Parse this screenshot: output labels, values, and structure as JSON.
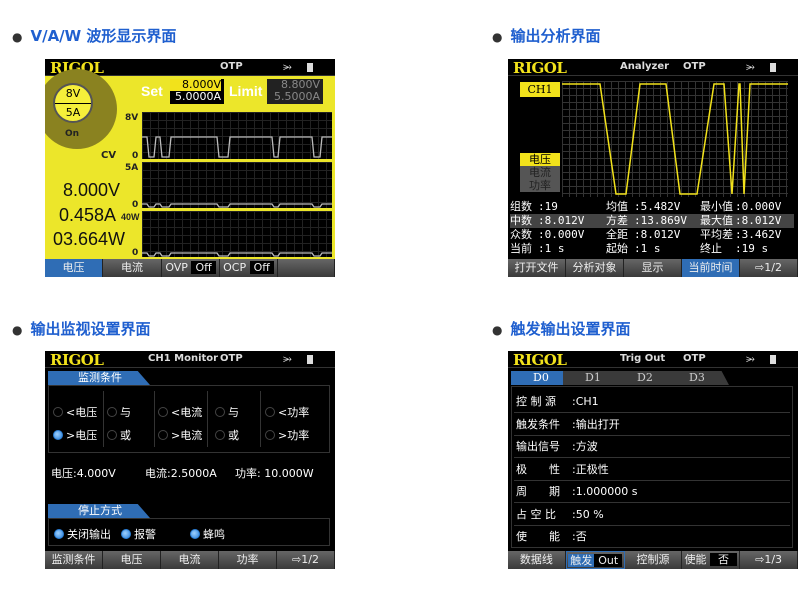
{
  "headings": [
    "V/A/W 波形显示界面",
    "输出分析界面",
    "输出监视设置界面",
    "触发输出设置界面"
  ],
  "common": {
    "logo": "RIGOL",
    "otp": "OTP",
    "usb_icon": "usb-icon",
    "speaker_icon": "speaker-icon",
    "accent": "#2f6db5",
    "yellow": "#f2e21b"
  },
  "vaw": {
    "range_v": "8V",
    "range_a": "5A",
    "state": "On",
    "mode": "CV",
    "set_label": "Set",
    "set_v": "8.000V",
    "set_a": "5.0000A",
    "limit_label": "Limit",
    "limit_v": "8.800V",
    "limit_a": "5.5000A",
    "axis": {
      "v_max": "8V",
      "a_max": "5A",
      "w_max": "40W",
      "zero": "0"
    },
    "voltage": "8.000V",
    "current": "0.458A",
    "power": "03.664W",
    "keys": [
      "电压",
      "电流",
      "OVP",
      "Off",
      "OCP",
      "Off"
    ]
  },
  "analyzer": {
    "title": "Analyzer",
    "channel": "CH1",
    "sel": [
      "电压",
      "电流",
      "功率"
    ],
    "stats": [
      [
        "组数",
        ":19",
        "均值",
        ":5.482V",
        "最小值",
        ":0.000V"
      ],
      [
        "中数",
        ":8.012V",
        "方差",
        ":13.869V",
        "最大值",
        ":8.012V"
      ],
      [
        "众数",
        ":0.000V",
        "全距",
        ":8.012V",
        "平均差",
        ":3.462V"
      ],
      [
        "当前",
        ":1 s",
        "起始",
        ":1 s",
        "终止",
        ":19 s"
      ]
    ],
    "keys": [
      "打开文件",
      "分析对象",
      "显示",
      "当前时间",
      "⇨1/2"
    ]
  },
  "monitor": {
    "title": "CH1 Monitor",
    "tab1": "监测条件",
    "options": [
      [
        "<电压",
        "与",
        "<电流",
        "与",
        "<功率"
      ],
      [
        ">电压",
        "或",
        ">电流",
        "或",
        ">功率"
      ]
    ],
    "selected": ">电压",
    "voltage": "电压:4.000V",
    "current": "电流:2.5000A",
    "power": "功率: 10.000W",
    "tab2": "停止方式",
    "stop": [
      "关闭输出",
      "报警",
      "蜂鸣"
    ],
    "keys": [
      "监测条件",
      "电压",
      "电流",
      "功率",
      "⇨1/2"
    ]
  },
  "trig": {
    "title": "Trig Out",
    "tabs": [
      "D0",
      "D1",
      "D2",
      "D3"
    ],
    "rows": [
      [
        "控 制 源",
        ":CH1"
      ],
      [
        "触发条件",
        ":输出打开"
      ],
      [
        "输出信号",
        ":方波"
      ],
      [
        "极　　性",
        ":正极性"
      ],
      [
        "周　　期",
        ":1.000000 s"
      ],
      [
        "占 空 比",
        ":50 %"
      ],
      [
        "使　　能",
        ":否"
      ]
    ],
    "keys": [
      "数据线",
      "触发",
      "Out",
      "控制源",
      "使能",
      "否",
      "⇨1/3"
    ]
  }
}
